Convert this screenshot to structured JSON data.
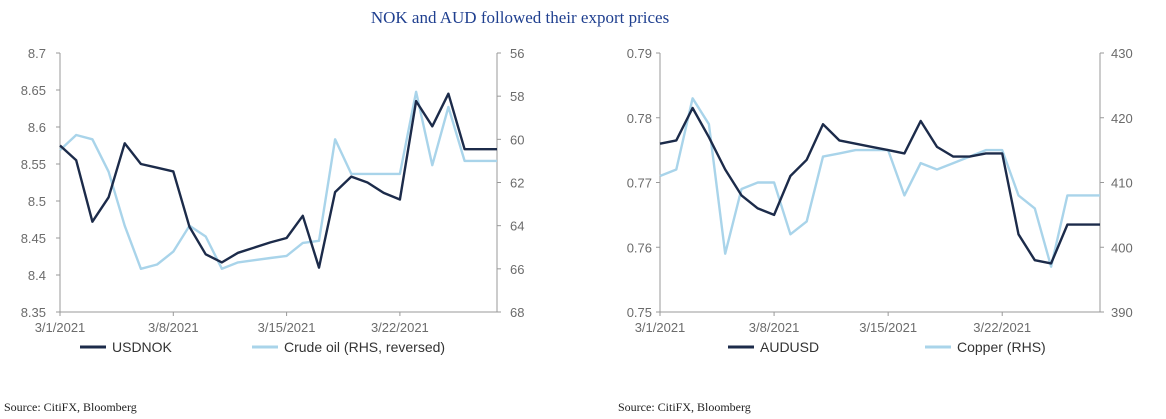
{
  "title": "NOK and AUD followed their export prices",
  "chart_data": [
    {
      "type": "line",
      "left_axis": {
        "ylim": [
          8.35,
          8.7
        ],
        "ticks": [
          "8.7",
          "8.65",
          "8.6",
          "8.55",
          "8.5",
          "8.45",
          "8.4",
          "8.35"
        ]
      },
      "right_axis": {
        "ylim": [
          56,
          68
        ],
        "reversed": true,
        "ticks": [
          "56",
          "58",
          "60",
          "62",
          "64",
          "66",
          "68"
        ]
      },
      "x_ticks": [
        "3/1/2021",
        "3/8/2021",
        "3/15/2021",
        "3/22/2021"
      ],
      "x_tick_values": [
        0,
        7,
        14,
        21
      ],
      "xlim": [
        0,
        27
      ],
      "series": [
        {
          "name": "USDNOK",
          "axis": "left",
          "color": "#1c2b4a",
          "x": [
            0,
            1,
            2,
            3,
            4,
            5,
            6,
            7,
            8,
            9,
            10,
            11,
            12,
            13,
            14,
            15,
            16,
            17,
            18,
            19,
            20,
            21,
            22,
            23,
            24,
            25,
            26,
            27
          ],
          "values": [
            8.575,
            8.555,
            8.472,
            8.505,
            8.578,
            8.55,
            8.545,
            8.54,
            8.465,
            8.428,
            8.417,
            8.43,
            8.437,
            8.444,
            8.45,
            8.48,
            8.41,
            8.512,
            8.533,
            8.525,
            8.511,
            8.502,
            8.635,
            8.601,
            8.645,
            8.57,
            8.57,
            8.57
          ]
        },
        {
          "name": "Crude oil (RHS, reversed)",
          "axis": "right",
          "color": "#a9d4ea",
          "x": [
            0,
            1,
            2,
            3,
            4,
            5,
            6,
            7,
            8,
            9,
            10,
            11,
            12,
            13,
            14,
            15,
            16,
            17,
            18,
            19,
            20,
            21,
            22,
            23,
            24,
            25,
            26,
            27
          ],
          "values": [
            60.5,
            59.8,
            60.0,
            61.5,
            64.0,
            66.0,
            65.8,
            65.2,
            64.0,
            64.5,
            66.0,
            65.7,
            65.6,
            65.5,
            65.4,
            64.8,
            64.7,
            60.0,
            61.6,
            61.6,
            61.6,
            61.6,
            57.8,
            61.2,
            58.5,
            61.0,
            61.0,
            61.0
          ]
        }
      ],
      "legend": [
        "USDNOK",
        "Crude oil (RHS, reversed)"
      ]
    },
    {
      "type": "line",
      "left_axis": {
        "ylim": [
          0.75,
          0.79
        ],
        "ticks": [
          "0.79",
          "0.78",
          "0.77",
          "0.76",
          "0.75"
        ]
      },
      "right_axis": {
        "ylim": [
          390,
          430
        ],
        "reversed": false,
        "ticks": [
          "430",
          "420",
          "410",
          "400",
          "390"
        ]
      },
      "x_ticks": [
        "3/1/2021",
        "3/8/2021",
        "3/15/2021",
        "3/22/2021"
      ],
      "x_tick_values": [
        0,
        7,
        14,
        21
      ],
      "xlim": [
        0,
        27
      ],
      "series": [
        {
          "name": "AUDUSD",
          "axis": "left",
          "color": "#1c2b4a",
          "x": [
            0,
            1,
            2,
            3,
            4,
            5,
            6,
            7,
            8,
            9,
            10,
            11,
            12,
            13,
            14,
            15,
            16,
            17,
            18,
            19,
            20,
            21,
            22,
            23,
            24,
            25,
            26,
            27
          ],
          "values": [
            0.776,
            0.7765,
            0.7815,
            0.777,
            0.772,
            0.768,
            0.766,
            0.765,
            0.771,
            0.7735,
            0.779,
            0.7765,
            0.776,
            0.7755,
            0.775,
            0.7745,
            0.7795,
            0.7755,
            0.774,
            0.774,
            0.7745,
            0.7745,
            0.762,
            0.758,
            0.7575,
            0.7635,
            0.7635,
            0.7635
          ]
        },
        {
          "name": "Copper (RHS)",
          "axis": "right",
          "color": "#a9d4ea",
          "x": [
            0,
            1,
            2,
            3,
            4,
            5,
            6,
            7,
            8,
            9,
            10,
            11,
            12,
            13,
            14,
            15,
            16,
            17,
            18,
            19,
            20,
            21,
            22,
            23,
            24,
            25,
            26,
            27
          ],
          "values": [
            411,
            412,
            423,
            419,
            399,
            409,
            410,
            410,
            402,
            404,
            414,
            414.5,
            415,
            415,
            415,
            408,
            413,
            412,
            413,
            414,
            415,
            415,
            408,
            406,
            397,
            408,
            408,
            408
          ]
        }
      ],
      "legend": [
        "AUDUSD",
        "Copper (RHS)"
      ]
    }
  ],
  "sources": [
    "Source: CitiFX, Bloomberg",
    "Source: CitiFX, Bloomberg"
  ]
}
